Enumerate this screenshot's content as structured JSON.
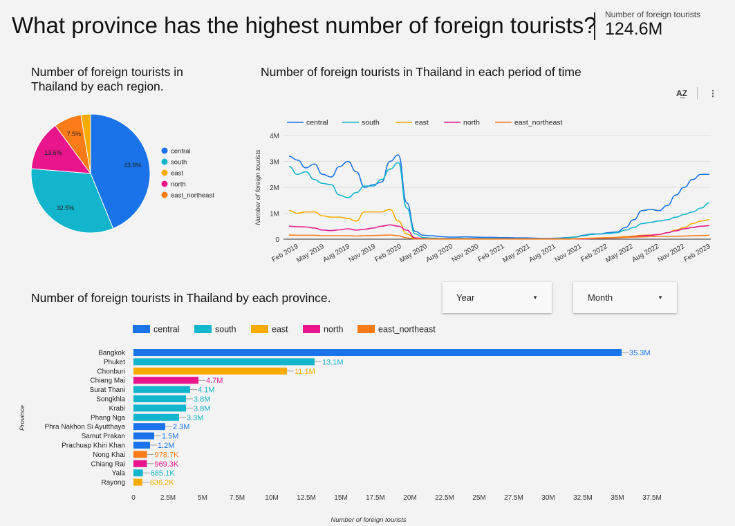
{
  "header": {
    "title": "What province has the highest number of foreign tourists?",
    "kpi_label": "Number of foreign tourists",
    "kpi_value": "124.6M"
  },
  "filters": {
    "year_label": "Year",
    "month_label": "Month"
  },
  "toolbar": {
    "sort_icon": "A͢Z",
    "more_icon": "⋮"
  },
  "colors": {
    "central": "#1a73e8",
    "south": "#12b5cb",
    "east": "#f9ab00",
    "north": "#e8158c",
    "east_northeast": "#fa7b17"
  },
  "chart_data": [
    {
      "type": "pie",
      "title": "Number of foreign tourists in Thailand by each region.",
      "slices": [
        {
          "name": "central",
          "value": 43.8,
          "label": "43.8%"
        },
        {
          "name": "south",
          "value": 32.5,
          "label": "32.5%"
        },
        {
          "name": "north",
          "value": 13.6,
          "label": "13.6%"
        },
        {
          "name": "east_northeast",
          "value": 7.5,
          "label": "7.5%"
        },
        {
          "name": "east",
          "value": 2.6,
          "label": ""
        }
      ],
      "legend": [
        "central",
        "south",
        "east",
        "north",
        "east_northeast"
      ],
      "legend_position": "right"
    },
    {
      "type": "line",
      "title": "Number of foreign tourists in Thailand in each period of time",
      "ylabel": "Number of foreign tourists",
      "xlabel": "",
      "ylim": [
        0,
        4000000
      ],
      "yticks": [
        {
          "v": 0,
          "label": "0"
        },
        {
          "v": 1000000,
          "label": "1M"
        },
        {
          "v": 2000000,
          "label": "2M"
        },
        {
          "v": 3000000,
          "label": "3M"
        },
        {
          "v": 4000000,
          "label": "4M"
        }
      ],
      "xticks": [
        "Feb 2019",
        "May 2019",
        "Aug 2019",
        "Nov 2019",
        "Feb 2020",
        "May 2020",
        "Aug 2020",
        "Nov 2020",
        "Feb 2021",
        "May 2021",
        "Aug 2021",
        "Nov 2021",
        "Feb 2022",
        "May 2022",
        "Aug 2022",
        "Nov 2022",
        "Feb 2023"
      ],
      "x_start": "Jan 2019",
      "x_end": "Mar 2023",
      "grid": true,
      "legend_position": "top",
      "series": [
        {
          "name": "central",
          "values": [
            3200000,
            3050000,
            2750000,
            2900000,
            2500000,
            2400000,
            2800000,
            3000000,
            2600000,
            2000000,
            2100000,
            2200000,
            3000000,
            3250000,
            1400000,
            300000,
            150000,
            130000,
            100000,
            80000,
            80000,
            90000,
            80000,
            70000,
            70000,
            60000,
            60000,
            50000,
            50000,
            40000,
            30000,
            30000,
            40000,
            60000,
            80000,
            150000,
            200000,
            200000,
            250000,
            280000,
            450000,
            750000,
            1100000,
            1150000,
            1100000,
            1300000,
            1700000,
            2000000,
            2300000,
            2500000,
            2500000
          ]
        },
        {
          "name": "south",
          "values": [
            2800000,
            2500000,
            2600000,
            2300000,
            2150000,
            2100000,
            1700000,
            1600000,
            1800000,
            2050000,
            2050000,
            2300000,
            2700000,
            2950000,
            1200000,
            200000,
            60000,
            40000,
            30000,
            30000,
            30000,
            30000,
            30000,
            30000,
            30000,
            30000,
            20000,
            20000,
            20000,
            20000,
            20000,
            20000,
            30000,
            50000,
            80000,
            130000,
            180000,
            200000,
            220000,
            250000,
            350000,
            450000,
            600000,
            650000,
            700000,
            750000,
            850000,
            950000,
            1050000,
            1200000,
            1400000
          ]
        },
        {
          "name": "east",
          "values": [
            1100000,
            1000000,
            1050000,
            1050000,
            900000,
            850000,
            850000,
            800000,
            700000,
            1050000,
            1050000,
            1050000,
            1150000,
            700000,
            200000,
            30000,
            20000,
            10000,
            10000,
            10000,
            10000,
            10000,
            10000,
            10000,
            10000,
            10000,
            10000,
            10000,
            10000,
            10000,
            10000,
            10000,
            10000,
            10000,
            20000,
            30000,
            40000,
            50000,
            60000,
            70000,
            100000,
            120000,
            150000,
            160000,
            180000,
            250000,
            350000,
            450000,
            600000,
            700000,
            750000
          ]
        },
        {
          "name": "north",
          "values": [
            500000,
            480000,
            470000,
            430000,
            350000,
            330000,
            360000,
            400000,
            350000,
            380000,
            430000,
            500000,
            550000,
            500000,
            350000,
            50000,
            20000,
            10000,
            10000,
            10000,
            10000,
            10000,
            10000,
            10000,
            10000,
            10000,
            10000,
            10000,
            10000,
            10000,
            10000,
            10000,
            10000,
            10000,
            10000,
            10000,
            20000,
            30000,
            40000,
            50000,
            70000,
            100000,
            130000,
            150000,
            180000,
            250000,
            320000,
            400000,
            450000,
            500000,
            520000
          ]
        },
        {
          "name": "east_northeast",
          "values": [
            160000,
            150000,
            150000,
            150000,
            130000,
            130000,
            130000,
            130000,
            120000,
            130000,
            140000,
            150000,
            160000,
            130000,
            50000,
            10000,
            10000,
            5000,
            5000,
            5000,
            5000,
            5000,
            5000,
            5000,
            5000,
            5000,
            5000,
            5000,
            5000,
            5000,
            5000,
            5000,
            5000,
            5000,
            10000,
            20000,
            30000,
            40000,
            50000,
            60000,
            70000,
            80000,
            90000,
            100000,
            110000,
            110000,
            110000,
            120000,
            130000,
            140000,
            150000
          ]
        }
      ]
    },
    {
      "type": "bar",
      "orientation": "horizontal",
      "title": "Number of foreign tourists in Thailand by each province.",
      "xlabel": "Number of foreign tourists",
      "ylabel": "Province",
      "xlim": [
        0,
        37500000
      ],
      "xticks": [
        {
          "v": 0,
          "label": "0"
        },
        {
          "v": 2500000,
          "label": "2.5M"
        },
        {
          "v": 5000000,
          "label": "5M"
        },
        {
          "v": 7500000,
          "label": "7.5M"
        },
        {
          "v": 10000000,
          "label": "10M"
        },
        {
          "v": 12500000,
          "label": "12.5M"
        },
        {
          "v": 15000000,
          "label": "15M"
        },
        {
          "v": 17500000,
          "label": "17.5M"
        },
        {
          "v": 20000000,
          "label": "20M"
        },
        {
          "v": 22500000,
          "label": "22.5M"
        },
        {
          "v": 25000000,
          "label": "25M"
        },
        {
          "v": 27500000,
          "label": "27.5M"
        },
        {
          "v": 30000000,
          "label": "30M"
        },
        {
          "v": 32500000,
          "label": "32.5M"
        },
        {
          "v": 35000000,
          "label": "35M"
        },
        {
          "v": 37500000,
          "label": "37.5M"
        }
      ],
      "legend": [
        "central",
        "south",
        "east",
        "north",
        "east_northeast"
      ],
      "legend_position": "top",
      "bars": [
        {
          "province": "Bangkok",
          "region": "central",
          "value": 35300000,
          "label": "35.3M"
        },
        {
          "province": "Phuket",
          "region": "south",
          "value": 13100000,
          "label": "13.1M"
        },
        {
          "province": "Chonburi",
          "region": "east",
          "value": 11100000,
          "label": "11.1M"
        },
        {
          "province": "Chiang Mai",
          "region": "north",
          "value": 4700000,
          "label": "4.7M"
        },
        {
          "province": "Surat Thani",
          "region": "south",
          "value": 4100000,
          "label": "4.1M"
        },
        {
          "province": "Songkhla",
          "region": "south",
          "value": 3800000,
          "label": "3.8M"
        },
        {
          "province": "Krabi",
          "region": "south",
          "value": 3800000,
          "label": "3.8M"
        },
        {
          "province": "Phang Nga",
          "region": "south",
          "value": 3300000,
          "label": "3.3M"
        },
        {
          "province": "Phra Nakhon Si Ayutthaya",
          "region": "central",
          "value": 2300000,
          "label": "2.3M"
        },
        {
          "province": "Samut Prakan",
          "region": "central",
          "value": 1500000,
          "label": "1.5M"
        },
        {
          "province": "Prachuap Khiri Khan",
          "region": "central",
          "value": 1200000,
          "label": "1.2M"
        },
        {
          "province": "Nong Khai",
          "region": "east_northeast",
          "value": 978700,
          "label": "978.7K"
        },
        {
          "province": "Chiang Rai",
          "region": "north",
          "value": 969300,
          "label": "969.3K"
        },
        {
          "province": "Yala",
          "region": "south",
          "value": 685100,
          "label": "685.1K"
        },
        {
          "province": "Rayong",
          "region": "east",
          "value": 636200,
          "label": "636.2K"
        }
      ]
    }
  ]
}
